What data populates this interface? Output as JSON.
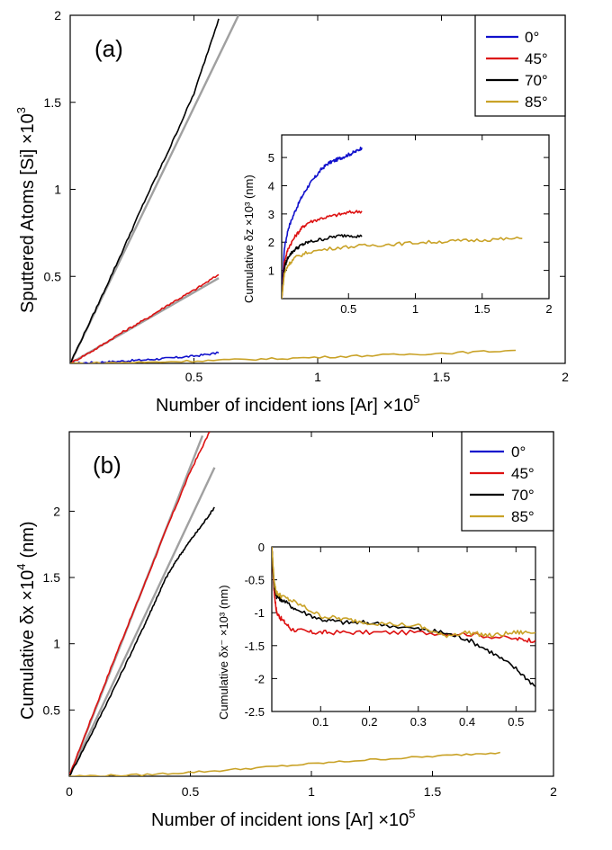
{
  "chart_data": [
    {
      "id": "a",
      "type": "line",
      "panel_label": "(a)",
      "xlabel": "Number of incident ions [Ar] ×10",
      "xlabel_exp": "5",
      "ylabel": "Sputtered Atoms [Si] ×10",
      "ylabel_exp": "3",
      "xlim": [
        0,
        2
      ],
      "ylim": [
        0,
        2
      ],
      "xticks": [
        {
          "v": 0.5,
          "label": "0.5"
        },
        {
          "v": 1,
          "label": "1"
        },
        {
          "v": 1.5,
          "label": "1.5"
        },
        {
          "v": 2,
          "label": "2"
        }
      ],
      "yticks": [
        {
          "v": 0.5,
          "label": "0.5"
        },
        {
          "v": 1,
          "label": "1"
        },
        {
          "v": 1.5,
          "label": "1.5"
        },
        {
          "v": 2,
          "label": "2"
        }
      ],
      "legend": {
        "position": "top-right",
        "entries": [
          {
            "name": "0°",
            "color": "#1111cc"
          },
          {
            "name": "45°",
            "color": "#dd1111"
          },
          {
            "name": "70°",
            "color": "#000000"
          },
          {
            "name": "85°",
            "color": "#c9a227"
          }
        ]
      },
      "series": [
        {
          "name": "0°",
          "color": "#1111cc",
          "x": [
            0,
            0.1,
            0.2,
            0.3,
            0.4,
            0.5,
            0.6
          ],
          "y": [
            0,
            0.005,
            0.012,
            0.02,
            0.03,
            0.042,
            0.06
          ]
        },
        {
          "name": "45°",
          "color": "#dd1111",
          "x": [
            0,
            0.1,
            0.2,
            0.3,
            0.4,
            0.5,
            0.6
          ],
          "y": [
            0,
            0.08,
            0.17,
            0.25,
            0.34,
            0.42,
            0.51
          ]
        },
        {
          "name": "70°",
          "color": "#000000",
          "x": [
            0,
            0.1,
            0.2,
            0.3,
            0.4,
            0.5,
            0.6
          ],
          "y": [
            0,
            0.3,
            0.61,
            0.93,
            1.23,
            1.55,
            1.98
          ]
        },
        {
          "name": "85°",
          "color": "#c9a227",
          "x": [
            0,
            0.3,
            0.6,
            0.9,
            1.2,
            1.5,
            1.8
          ],
          "y": [
            0,
            0.006,
            0.018,
            0.03,
            0.045,
            0.058,
            0.075
          ]
        }
      ],
      "fits": [
        {
          "color": "#a0a0a0",
          "x": [
            0,
            0.68
          ],
          "y": [
            0,
            2.0
          ]
        },
        {
          "color": "#a0a0a0",
          "x": [
            0,
            0.6
          ],
          "y": [
            0,
            0.49
          ]
        }
      ],
      "inset": {
        "xlabel": "",
        "ylabel": "Cumulative δz ×10³ (nm)",
        "xlim": [
          0,
          2
        ],
        "ylim": [
          0,
          5.8
        ],
        "xticks": [
          {
            "v": 0.5,
            "label": "0.5"
          },
          {
            "v": 1,
            "label": "1"
          },
          {
            "v": 1.5,
            "label": "1.5"
          },
          {
            "v": 2,
            "label": "2"
          }
        ],
        "yticks": [
          {
            "v": 1,
            "label": "1"
          },
          {
            "v": 2,
            "label": "2"
          },
          {
            "v": 3,
            "label": "3"
          },
          {
            "v": 4,
            "label": "4"
          },
          {
            "v": 5,
            "label": "5"
          }
        ],
        "series": [
          {
            "name": "0°",
            "color": "#1111cc",
            "x": [
              0,
              0.02,
              0.05,
              0.1,
              0.15,
              0.2,
              0.25,
              0.3,
              0.35,
              0.4,
              0.45,
              0.5,
              0.55,
              0.6
            ],
            "y": [
              0,
              1.8,
              2.5,
              3.1,
              3.6,
              4.0,
              4.3,
              4.6,
              4.8,
              4.9,
              5.0,
              5.1,
              5.2,
              5.35
            ]
          },
          {
            "name": "45°",
            "color": "#dd1111",
            "x": [
              0,
              0.02,
              0.05,
              0.1,
              0.15,
              0.2,
              0.3,
              0.4,
              0.5,
              0.6
            ],
            "y": [
              0,
              1.3,
              1.8,
              2.2,
              2.5,
              2.7,
              2.85,
              2.95,
              3.05,
              3.1
            ]
          },
          {
            "name": "70°",
            "color": "#000000",
            "x": [
              0,
              0.02,
              0.05,
              0.1,
              0.15,
              0.2,
              0.3,
              0.4,
              0.5,
              0.6
            ],
            "y": [
              0,
              1.1,
              1.5,
              1.75,
              1.9,
              2.0,
              2.1,
              2.2,
              2.25,
              2.2
            ]
          },
          {
            "name": "85°",
            "color": "#c9a227",
            "x": [
              0,
              0.02,
              0.05,
              0.1,
              0.2,
              0.4,
              0.6,
              0.8,
              1.0,
              1.2,
              1.4,
              1.6,
              1.8
            ],
            "y": [
              0,
              0.9,
              1.2,
              1.45,
              1.65,
              1.8,
              1.87,
              1.92,
              1.98,
              2.02,
              2.06,
              2.1,
              2.13
            ]
          }
        ]
      }
    },
    {
      "id": "b",
      "type": "line",
      "panel_label": "(b)",
      "xlabel": "Number of incident ions [Ar] ×10",
      "xlabel_exp": "5",
      "ylabel": "Cumulative δx ×10",
      "ylabel_exp": "4",
      "ylabel_unit": "(nm)",
      "xlim": [
        0,
        2
      ],
      "ylim": [
        0,
        2.6
      ],
      "xticks": [
        {
          "v": 0,
          "label": "0"
        },
        {
          "v": 0.5,
          "label": "0.5"
        },
        {
          "v": 1,
          "label": "1"
        },
        {
          "v": 1.5,
          "label": "1.5"
        },
        {
          "v": 2,
          "label": "2"
        }
      ],
      "yticks": [
        {
          "v": 0.5,
          "label": "0.5"
        },
        {
          "v": 1,
          "label": "1"
        },
        {
          "v": 1.5,
          "label": "1.5"
        },
        {
          "v": 2,
          "label": "2"
        }
      ],
      "legend": {
        "position": "top-right",
        "entries": [
          {
            "name": "0°",
            "color": "#1111cc"
          },
          {
            "name": "45°",
            "color": "#dd1111"
          },
          {
            "name": "70°",
            "color": "#000000"
          },
          {
            "name": "85°",
            "color": "#c9a227"
          }
        ]
      },
      "series": [
        {
          "name": "45°",
          "color": "#dd1111",
          "x": [
            0,
            0.1,
            0.2,
            0.3,
            0.4,
            0.5,
            0.58
          ],
          "y": [
            0,
            0.48,
            0.95,
            1.4,
            1.86,
            2.3,
            2.6
          ]
        },
        {
          "name": "70°",
          "color": "#000000",
          "x": [
            0,
            0.1,
            0.2,
            0.3,
            0.35,
            0.4,
            0.45,
            0.5,
            0.55,
            0.6
          ],
          "y": [
            0,
            0.35,
            0.72,
            1.1,
            1.3,
            1.5,
            1.65,
            1.78,
            1.9,
            2.03
          ]
        },
        {
          "name": "85°",
          "color": "#c9a227",
          "x": [
            0,
            0.3,
            0.6,
            0.9,
            1.2,
            1.5,
            1.78
          ],
          "y": [
            0,
            0.01,
            0.04,
            0.08,
            0.12,
            0.15,
            0.18
          ]
        }
      ],
      "fits": [
        {
          "color": "#a0a0a0",
          "x": [
            0,
            0.55
          ],
          "y": [
            0,
            2.57
          ]
        },
        {
          "color": "#a0a0a0",
          "x": [
            0,
            0.6
          ],
          "y": [
            0,
            2.33
          ]
        }
      ],
      "inset": {
        "xlabel": "",
        "ylabel": "Cumulative δx⁻ ×10³ (nm)",
        "xlim": [
          0,
          0.54
        ],
        "ylim": [
          -2.5,
          0
        ],
        "xticks": [
          {
            "v": 0.1,
            "label": "0.1"
          },
          {
            "v": 0.2,
            "label": "0.2"
          },
          {
            "v": 0.3,
            "label": "0.3"
          },
          {
            "v": 0.4,
            "label": "0.4"
          },
          {
            "v": 0.5,
            "label": "0.5"
          }
        ],
        "yticks": [
          {
            "v": 0,
            "label": "0"
          },
          {
            "v": -0.5,
            "label": "-0.5"
          },
          {
            "v": -1,
            "label": "-1"
          },
          {
            "v": -1.5,
            "label": "-1.5"
          },
          {
            "v": -2,
            "label": "-2"
          },
          {
            "v": -2.5,
            "label": "-2.5"
          }
        ],
        "series": [
          {
            "name": "45°",
            "color": "#dd1111",
            "x": [
              0,
              0.005,
              0.01,
              0.02,
              0.04,
              0.08,
              0.12,
              0.2,
              0.3,
              0.4,
              0.5,
              0.54
            ],
            "y": [
              0,
              -0.7,
              -1.0,
              -1.1,
              -1.25,
              -1.3,
              -1.3,
              -1.3,
              -1.3,
              -1.32,
              -1.4,
              -1.42
            ]
          },
          {
            "name": "70°",
            "color": "#000000",
            "x": [
              0,
              0.005,
              0.01,
              0.02,
              0.05,
              0.1,
              0.15,
              0.2,
              0.3,
              0.35,
              0.4,
              0.45,
              0.5,
              0.54
            ],
            "y": [
              0,
              -0.6,
              -0.75,
              -0.8,
              -0.95,
              -1.1,
              -1.15,
              -1.15,
              -1.25,
              -1.3,
              -1.4,
              -1.6,
              -1.85,
              -2.12
            ]
          },
          {
            "name": "85°",
            "color": "#c9a227",
            "x": [
              0,
              0.005,
              0.01,
              0.02,
              0.05,
              0.1,
              0.15,
              0.2,
              0.3,
              0.35,
              0.4,
              0.45,
              0.5,
              0.54
            ],
            "y": [
              0,
              -0.55,
              -0.7,
              -0.75,
              -0.85,
              -1.05,
              -1.1,
              -1.15,
              -1.2,
              -1.35,
              -1.3,
              -1.35,
              -1.3,
              -1.3
            ]
          }
        ]
      }
    }
  ]
}
